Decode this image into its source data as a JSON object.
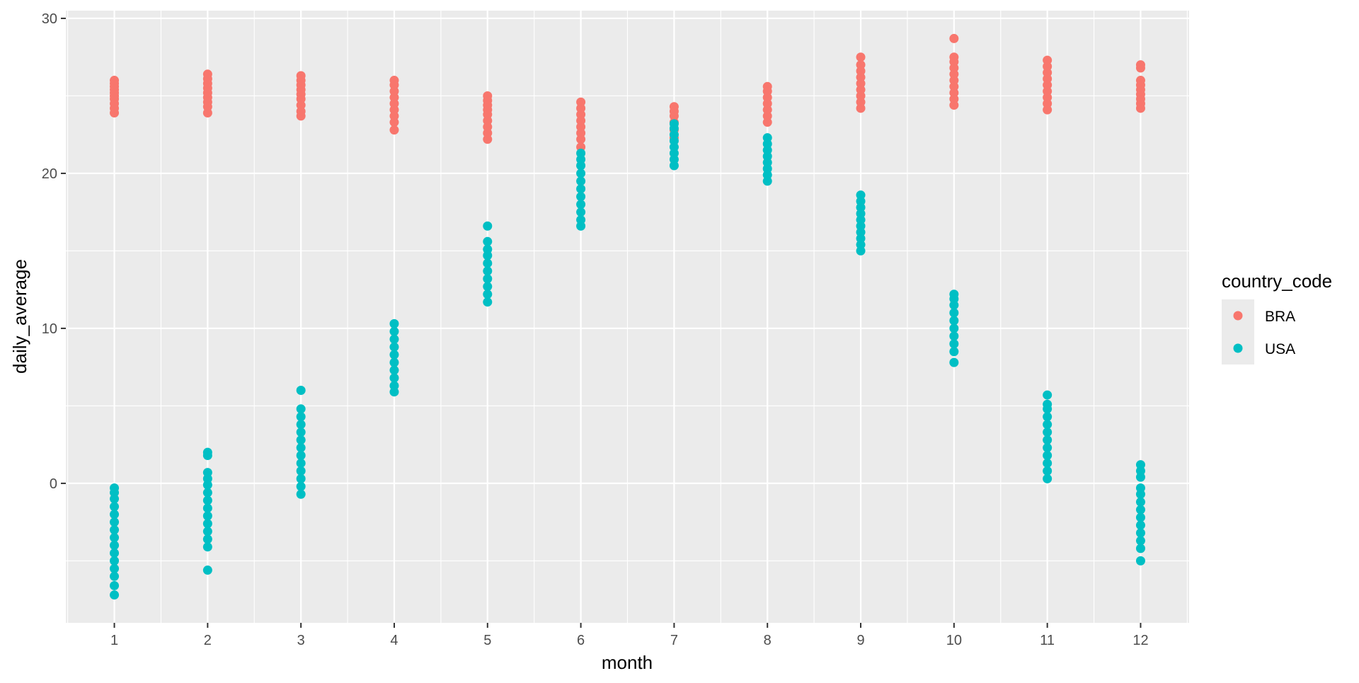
{
  "chart_data": {
    "type": "scatter",
    "xlabel": "month",
    "ylabel": "daily_average",
    "x_ticks": [
      1,
      2,
      3,
      4,
      5,
      6,
      7,
      8,
      9,
      10,
      11,
      12
    ],
    "y_ticks": [
      0,
      10,
      20,
      30
    ],
    "xlim": [
      0.48,
      12.52
    ],
    "ylim": [
      -9.0,
      30.5
    ],
    "grid": true,
    "legend_position": "right",
    "legend_title": "country_code",
    "series": [
      {
        "name": "BRA",
        "color": "#F8766D",
        "points": [
          [
            1,
            23.9
          ],
          [
            1,
            24.2
          ],
          [
            1,
            24.5
          ],
          [
            1,
            24.8
          ],
          [
            1,
            25.0
          ],
          [
            1,
            25.2
          ],
          [
            1,
            25.4
          ],
          [
            1,
            25.6
          ],
          [
            1,
            25.8
          ],
          [
            1,
            26.0
          ],
          [
            2,
            23.9
          ],
          [
            2,
            24.3
          ],
          [
            2,
            24.6
          ],
          [
            2,
            24.9
          ],
          [
            2,
            25.2
          ],
          [
            2,
            25.5
          ],
          [
            2,
            25.8
          ],
          [
            2,
            26.1
          ],
          [
            2,
            26.4
          ],
          [
            3,
            23.7
          ],
          [
            3,
            24.0
          ],
          [
            3,
            24.4
          ],
          [
            3,
            24.8
          ],
          [
            3,
            25.1
          ],
          [
            3,
            25.4
          ],
          [
            3,
            25.7
          ],
          [
            3,
            26.0
          ],
          [
            3,
            26.3
          ],
          [
            4,
            22.8
          ],
          [
            4,
            23.3
          ],
          [
            4,
            23.7
          ],
          [
            4,
            24.1
          ],
          [
            4,
            24.5
          ],
          [
            4,
            24.9
          ],
          [
            4,
            25.3
          ],
          [
            4,
            25.7
          ],
          [
            4,
            26.0
          ],
          [
            5,
            22.2
          ],
          [
            5,
            22.6
          ],
          [
            5,
            23.0
          ],
          [
            5,
            23.4
          ],
          [
            5,
            23.8
          ],
          [
            5,
            24.1
          ],
          [
            5,
            24.4
          ],
          [
            5,
            24.7
          ],
          [
            5,
            25.0
          ],
          [
            6,
            21.7
          ],
          [
            6,
            22.2
          ],
          [
            6,
            22.6
          ],
          [
            6,
            23.0
          ],
          [
            6,
            23.4
          ],
          [
            6,
            23.8
          ],
          [
            6,
            24.2
          ],
          [
            6,
            24.6
          ],
          [
            7,
            22.3
          ],
          [
            7,
            22.8
          ],
          [
            7,
            23.3
          ],
          [
            7,
            23.7
          ],
          [
            7,
            24.0
          ],
          [
            7,
            24.3
          ],
          [
            8,
            23.3
          ],
          [
            8,
            23.7
          ],
          [
            8,
            24.1
          ],
          [
            8,
            24.5
          ],
          [
            8,
            24.9
          ],
          [
            8,
            25.3
          ],
          [
            8,
            25.6
          ],
          [
            9,
            24.2
          ],
          [
            9,
            24.6
          ],
          [
            9,
            25.0
          ],
          [
            9,
            25.4
          ],
          [
            9,
            25.8
          ],
          [
            9,
            26.2
          ],
          [
            9,
            26.6
          ],
          [
            9,
            27.0
          ],
          [
            9,
            27.5
          ],
          [
            10,
            24.4
          ],
          [
            10,
            24.8
          ],
          [
            10,
            25.2
          ],
          [
            10,
            25.6
          ],
          [
            10,
            26.0
          ],
          [
            10,
            26.4
          ],
          [
            10,
            26.8
          ],
          [
            10,
            27.2
          ],
          [
            10,
            27.5
          ],
          [
            10,
            28.7
          ],
          [
            11,
            24.1
          ],
          [
            11,
            24.5
          ],
          [
            11,
            24.9
          ],
          [
            11,
            25.3
          ],
          [
            11,
            25.7
          ],
          [
            11,
            26.1
          ],
          [
            11,
            26.5
          ],
          [
            11,
            26.9
          ],
          [
            11,
            27.3
          ],
          [
            12,
            24.2
          ],
          [
            12,
            24.5
          ],
          [
            12,
            24.8
          ],
          [
            12,
            25.1
          ],
          [
            12,
            25.4
          ],
          [
            12,
            25.7
          ],
          [
            12,
            26.0
          ],
          [
            12,
            26.8
          ],
          [
            12,
            27.0
          ]
        ]
      },
      {
        "name": "USA",
        "color": "#00BFC4",
        "points": [
          [
            1,
            -7.2
          ],
          [
            1,
            -6.6
          ],
          [
            1,
            -6.0
          ],
          [
            1,
            -5.5
          ],
          [
            1,
            -5.0
          ],
          [
            1,
            -4.5
          ],
          [
            1,
            -4.0
          ],
          [
            1,
            -3.5
          ],
          [
            1,
            -3.0
          ],
          [
            1,
            -2.5
          ],
          [
            1,
            -2.0
          ],
          [
            1,
            -1.5
          ],
          [
            1,
            -1.0
          ],
          [
            1,
            -0.6
          ],
          [
            1,
            -0.3
          ],
          [
            2,
            -5.6
          ],
          [
            2,
            -4.1
          ],
          [
            2,
            -3.6
          ],
          [
            2,
            -3.1
          ],
          [
            2,
            -2.6
          ],
          [
            2,
            -2.1
          ],
          [
            2,
            -1.6
          ],
          [
            2,
            -1.1
          ],
          [
            2,
            -0.6
          ],
          [
            2,
            -0.1
          ],
          [
            2,
            0.3
          ],
          [
            2,
            0.7
          ],
          [
            2,
            1.8
          ],
          [
            2,
            2.0
          ],
          [
            3,
            -0.7
          ],
          [
            3,
            -0.2
          ],
          [
            3,
            0.3
          ],
          [
            3,
            0.8
          ],
          [
            3,
            1.3
          ],
          [
            3,
            1.8
          ],
          [
            3,
            2.3
          ],
          [
            3,
            2.8
          ],
          [
            3,
            3.3
          ],
          [
            3,
            3.8
          ],
          [
            3,
            4.3
          ],
          [
            3,
            4.8
          ],
          [
            3,
            6.0
          ],
          [
            4,
            5.9
          ],
          [
            4,
            6.3
          ],
          [
            4,
            6.8
          ],
          [
            4,
            7.3
          ],
          [
            4,
            7.8
          ],
          [
            4,
            8.3
          ],
          [
            4,
            8.8
          ],
          [
            4,
            9.3
          ],
          [
            4,
            9.8
          ],
          [
            4,
            10.3
          ],
          [
            5,
            11.7
          ],
          [
            5,
            12.2
          ],
          [
            5,
            12.7
          ],
          [
            5,
            13.2
          ],
          [
            5,
            13.7
          ],
          [
            5,
            14.2
          ],
          [
            5,
            14.7
          ],
          [
            5,
            15.1
          ],
          [
            5,
            15.6
          ],
          [
            5,
            16.6
          ],
          [
            6,
            16.6
          ],
          [
            6,
            17.0
          ],
          [
            6,
            17.5
          ],
          [
            6,
            18.0
          ],
          [
            6,
            18.5
          ],
          [
            6,
            19.0
          ],
          [
            6,
            19.5
          ],
          [
            6,
            20.0
          ],
          [
            6,
            20.5
          ],
          [
            6,
            20.9
          ],
          [
            6,
            21.3
          ],
          [
            7,
            20.5
          ],
          [
            7,
            20.9
          ],
          [
            7,
            21.3
          ],
          [
            7,
            21.7
          ],
          [
            7,
            22.1
          ],
          [
            7,
            22.5
          ],
          [
            7,
            22.9
          ],
          [
            7,
            23.2
          ],
          [
            8,
            19.5
          ],
          [
            8,
            19.9
          ],
          [
            8,
            20.3
          ],
          [
            8,
            20.7
          ],
          [
            8,
            21.1
          ],
          [
            8,
            21.5
          ],
          [
            8,
            21.9
          ],
          [
            8,
            22.3
          ],
          [
            9,
            15.0
          ],
          [
            9,
            15.4
          ],
          [
            9,
            15.8
          ],
          [
            9,
            16.2
          ],
          [
            9,
            16.6
          ],
          [
            9,
            17.0
          ],
          [
            9,
            17.4
          ],
          [
            9,
            17.8
          ],
          [
            9,
            18.2
          ],
          [
            9,
            18.6
          ],
          [
            10,
            7.8
          ],
          [
            10,
            8.5
          ],
          [
            10,
            9.0
          ],
          [
            10,
            9.5
          ],
          [
            10,
            10.0
          ],
          [
            10,
            10.5
          ],
          [
            10,
            11.0
          ],
          [
            10,
            11.5
          ],
          [
            10,
            11.9
          ],
          [
            10,
            12.2
          ],
          [
            11,
            0.3
          ],
          [
            11,
            0.8
          ],
          [
            11,
            1.3
          ],
          [
            11,
            1.8
          ],
          [
            11,
            2.3
          ],
          [
            11,
            2.8
          ],
          [
            11,
            3.3
          ],
          [
            11,
            3.8
          ],
          [
            11,
            4.3
          ],
          [
            11,
            4.8
          ],
          [
            11,
            5.1
          ],
          [
            11,
            5.7
          ],
          [
            12,
            -5.0
          ],
          [
            12,
            -4.2
          ],
          [
            12,
            -3.7
          ],
          [
            12,
            -3.2
          ],
          [
            12,
            -2.7
          ],
          [
            12,
            -2.2
          ],
          [
            12,
            -1.7
          ],
          [
            12,
            -1.2
          ],
          [
            12,
            -0.7
          ],
          [
            12,
            -0.3
          ],
          [
            12,
            0.4
          ],
          [
            12,
            0.8
          ],
          [
            12,
            1.2
          ]
        ]
      }
    ]
  }
}
